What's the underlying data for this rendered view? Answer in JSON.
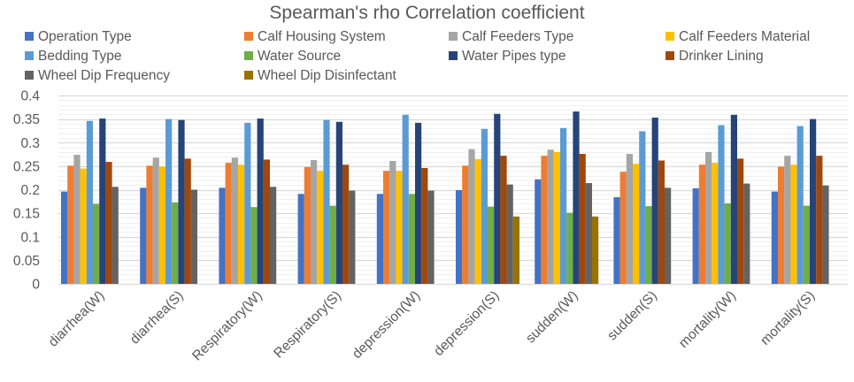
{
  "chart_data": {
    "type": "bar",
    "title": "Spearman's rho Correlation coefficient",
    "xlabel": "",
    "ylabel": "",
    "ylim": [
      0,
      0.4
    ],
    "yticks": [
      "0",
      "0.05",
      "0.1",
      "0.15",
      "0.2",
      "0.25",
      "0.3",
      "0.35",
      "0.4"
    ],
    "grid": true,
    "legend_position": "top",
    "categories": [
      "diarrhea(W)",
      "diarrhea(S)",
      "Respiratory(W)",
      "Respiratory(S)",
      "depression(W)",
      "depression(S)",
      "sudden(W)",
      "sudden(S)",
      "mortality(W)",
      "mortality(S)"
    ],
    "series": [
      {
        "name": "Operation Type",
        "color": "#4472C4",
        "values": [
          0.196,
          0.204,
          0.204,
          0.191,
          0.191,
          0.199,
          0.222,
          0.184,
          0.203,
          0.196
        ]
      },
      {
        "name": "Calf Housing System",
        "color": "#ED7D31",
        "values": [
          0.251,
          0.251,
          0.257,
          0.248,
          0.24,
          0.251,
          0.272,
          0.238,
          0.253,
          0.249
        ]
      },
      {
        "name": "Calf Feeders Type",
        "color": "#A5A5A5",
        "values": [
          0.274,
          0.268,
          0.268,
          0.263,
          0.261,
          0.286,
          0.285,
          0.276,
          0.28,
          0.272
        ]
      },
      {
        "name": "Calf Feeders Material",
        "color": "#FFC000",
        "values": [
          0.245,
          0.249,
          0.253,
          0.24,
          0.24,
          0.265,
          0.28,
          0.255,
          0.257,
          0.253
        ]
      },
      {
        "name": "Bedding Type",
        "color": "#5B9BD5",
        "values": [
          0.346,
          0.35,
          0.342,
          0.348,
          0.359,
          0.329,
          0.331,
          0.324,
          0.337,
          0.335
        ]
      },
      {
        "name": "Water Source",
        "color": "#70AD47",
        "values": [
          0.17,
          0.173,
          0.163,
          0.166,
          0.191,
          0.164,
          0.151,
          0.165,
          0.171,
          0.166
        ]
      },
      {
        "name": "Water Pipes type",
        "color": "#264478",
        "values": [
          0.351,
          0.348,
          0.351,
          0.344,
          0.342,
          0.361,
          0.366,
          0.353,
          0.359,
          0.35
        ]
      },
      {
        "name": "Drinker Lining",
        "color": "#9E480E",
        "values": [
          0.259,
          0.266,
          0.264,
          0.253,
          0.246,
          0.272,
          0.276,
          0.262,
          0.266,
          0.272
        ]
      },
      {
        "name": "Wheel Dip Frequency",
        "color": "#636363",
        "values": [
          0.206,
          0.2,
          0.206,
          0.198,
          0.198,
          0.211,
          0.214,
          0.204,
          0.213,
          0.209
        ]
      },
      {
        "name": "Wheel Dip Disinfectant",
        "color": "#997300",
        "values": [
          null,
          null,
          null,
          null,
          null,
          0.143,
          0.143,
          null,
          null,
          null
        ]
      }
    ]
  }
}
